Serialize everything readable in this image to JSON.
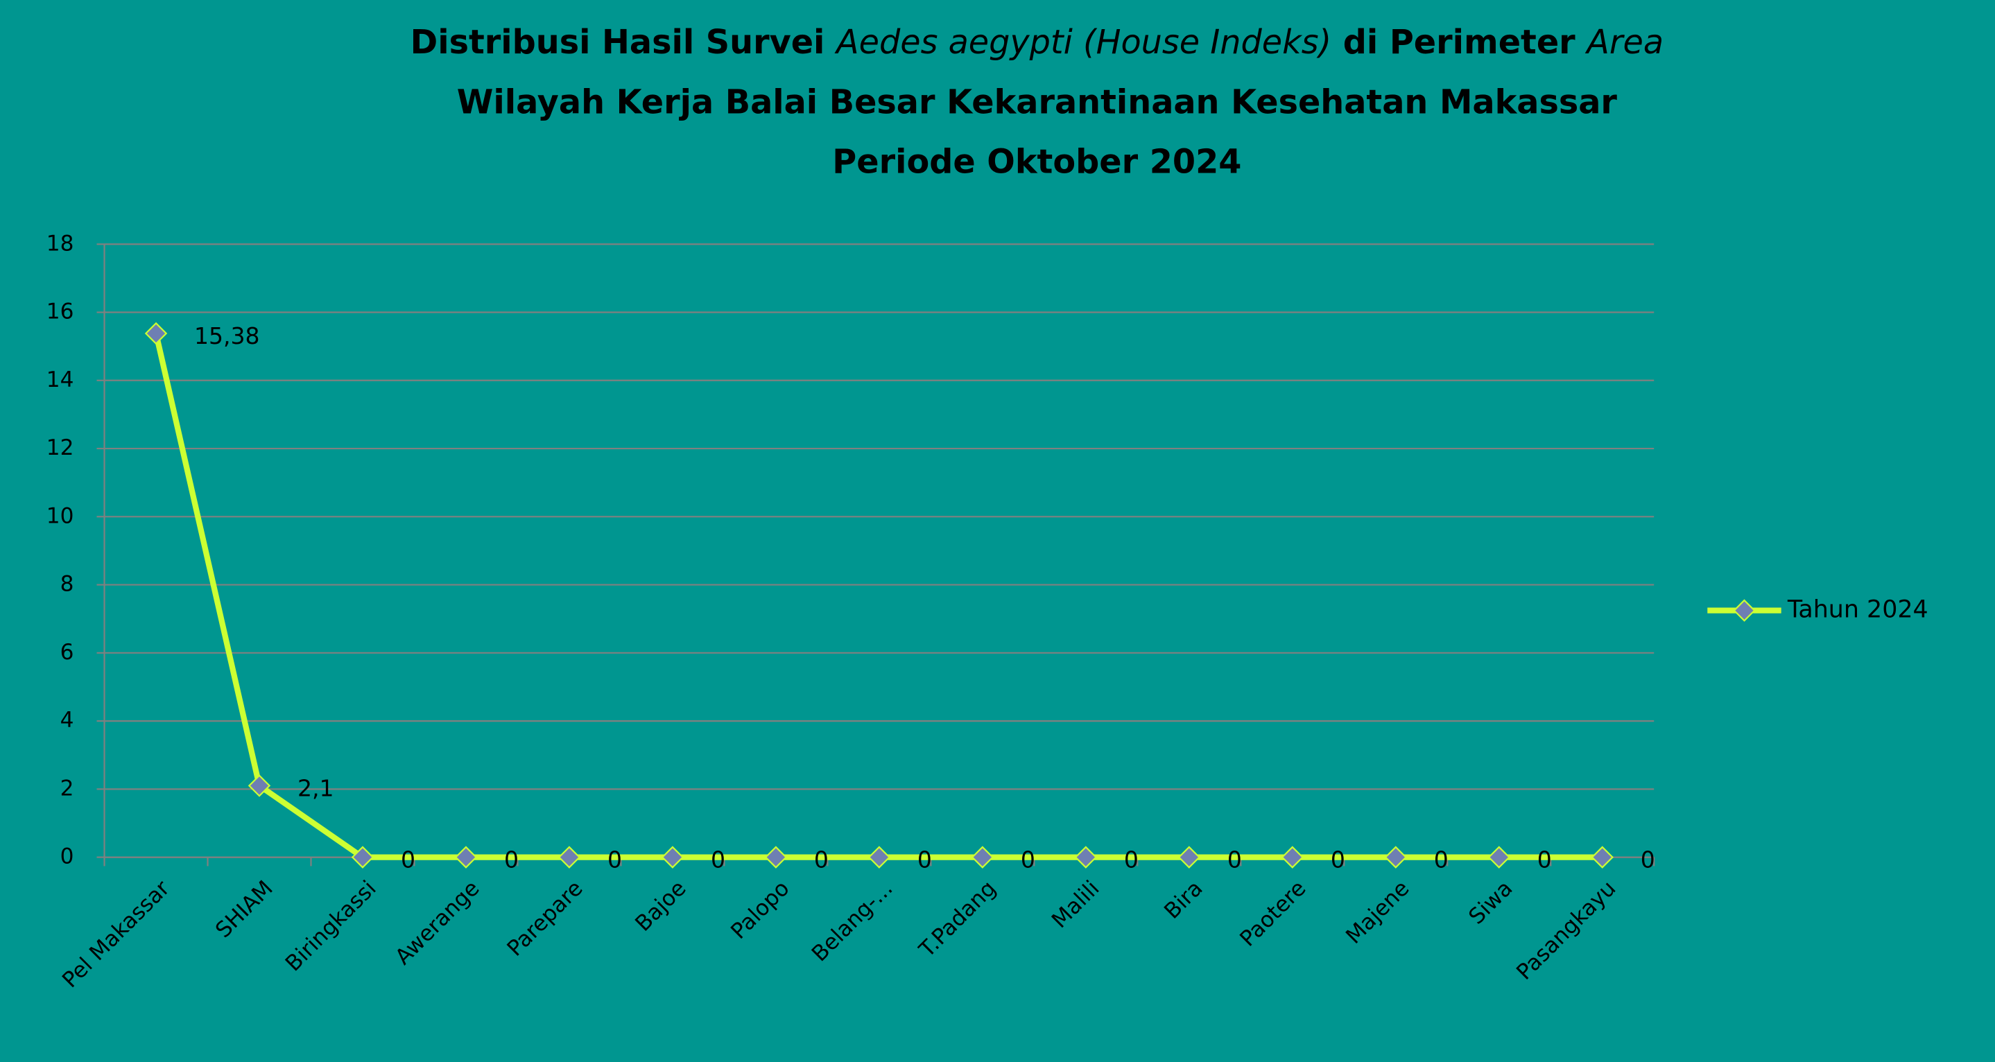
{
  "chart_data": {
    "type": "line",
    "title": [
      [
        {
          "text": "Distribusi Hasil Survei "
        },
        {
          "text": "Aedes aegypti (House Indeks)",
          "italic": true
        },
        {
          "text": " di Perimeter "
        },
        {
          "text": "Area",
          "italic": true
        }
      ],
      [
        {
          "text": "Wilayah Kerja Balai Besar Kekarantinaan Kesehatan Makassar"
        }
      ],
      [
        {
          "text": "Periode Oktober 2024"
        }
      ]
    ],
    "categories": [
      "Pel Makassar",
      "SHIAM",
      "Biringkassi",
      "Awerange",
      "Parepare",
      "Bajoe",
      "Palopo",
      "Belang-...",
      "T.Padang",
      "Malili",
      "Bira",
      "Paotere",
      "Majene",
      "Siwa",
      "Pasangkayu"
    ],
    "series": [
      {
        "name": "Tahun 2024",
        "color": "#ccff33",
        "marker_color": "#6e7fb3",
        "values": [
          15.38,
          2.1,
          0,
          0,
          0,
          0,
          0,
          0,
          0,
          0,
          0,
          0,
          0,
          0,
          0
        ],
        "value_labels": [
          "15,38",
          "2,1",
          "0",
          "0",
          "0",
          "0",
          "0",
          "0",
          "0",
          "0",
          "0",
          "0",
          "0",
          "0",
          "0"
        ]
      }
    ],
    "ylim": [
      0,
      18
    ],
    "yticks": [
      0,
      2,
      4,
      6,
      8,
      10,
      12,
      14,
      16,
      18
    ],
    "grid": true,
    "legend": "right"
  }
}
